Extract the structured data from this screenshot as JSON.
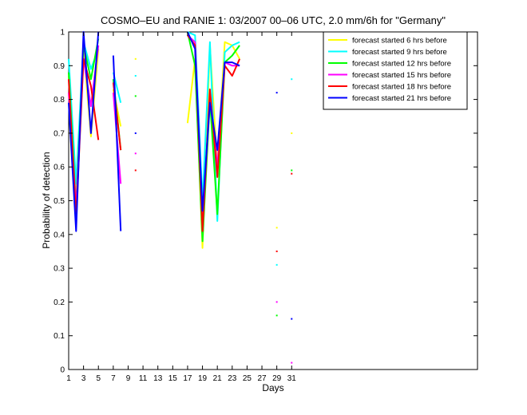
{
  "chart_data": {
    "type": "line",
    "title": "COSMO–EU and RANIE 1: 03/2007 00–06 UTC, 2.0 mm/6h for \"Germany\"",
    "xlabel": "Days",
    "ylabel": "Probability of detection",
    "xlim": [
      1,
      56
    ],
    "ylim": [
      0,
      1
    ],
    "xticks": [
      1,
      3,
      5,
      7,
      9,
      11,
      13,
      15,
      17,
      19,
      21,
      23,
      25,
      27,
      29,
      31
    ],
    "yticks": [
      0,
      0.1,
      0.2,
      0.3,
      0.4,
      0.5,
      0.6,
      0.7,
      0.8,
      0.9,
      1
    ],
    "ytick_labels": [
      "0",
      "0.1",
      "0.2",
      "0.3",
      "0.4",
      "0.5",
      "0.6",
      "0.7",
      "0.8",
      "0.9",
      "1"
    ],
    "grid": false,
    "legend_position": "top-right",
    "series": [
      {
        "name": "forecast started 6 hrs before",
        "color": "#ffff00",
        "values": [
          0.87,
          0.5,
          0.95,
          0.69,
          0.95,
          null,
          0.83,
          0.72,
          null,
          0.92,
          null,
          null,
          null,
          null,
          null,
          null,
          0.73,
          0.92,
          0.36,
          0.96,
          0.6,
          0.97,
          0.96,
          0.92,
          null,
          null,
          null,
          null,
          0.42,
          null,
          0.7
        ]
      },
      {
        "name": "forecast started 9 hrs before",
        "color": "#00ffff",
        "values": [
          0.92,
          0.55,
          0.97,
          0.89,
          0.95,
          null,
          0.88,
          0.79,
          null,
          0.87,
          null,
          null,
          null,
          null,
          null,
          null,
          1.0,
          0.99,
          0.5,
          0.97,
          0.44,
          0.94,
          0.96,
          0.97,
          null,
          null,
          null,
          null,
          0.31,
          null,
          0.86
        ]
      },
      {
        "name": "forecast started 12 hrs before",
        "color": "#00ff00",
        "values": [
          0.88,
          0.48,
          0.96,
          0.86,
          0.98,
          null,
          0.86,
          0.65,
          null,
          0.81,
          null,
          null,
          null,
          null,
          null,
          null,
          1.0,
          0.9,
          0.38,
          0.8,
          0.46,
          0.91,
          0.93,
          0.96,
          null,
          null,
          null,
          null,
          0.16,
          null,
          0.59
        ]
      },
      {
        "name": "forecast started 15 hrs before",
        "color": "#ff00ff",
        "values": [
          0.82,
          0.48,
          0.92,
          0.78,
          0.96,
          null,
          0.82,
          0.55,
          null,
          0.64,
          null,
          null,
          null,
          null,
          null,
          null,
          0.99,
          0.97,
          0.43,
          0.82,
          0.6,
          0.91,
          0.9,
          0.9,
          null,
          null,
          null,
          null,
          0.2,
          null,
          0.02
        ]
      },
      {
        "name": "forecast started 18 hrs before",
        "color": "#ff0000",
        "values": [
          0.86,
          0.45,
          0.92,
          0.84,
          0.68,
          null,
          0.85,
          0.65,
          null,
          0.59,
          null,
          null,
          null,
          null,
          null,
          null,
          0.99,
          0.96,
          0.41,
          0.83,
          0.57,
          0.9,
          0.87,
          0.92,
          null,
          null,
          null,
          null,
          0.35,
          null,
          0.58
        ]
      },
      {
        "name": "forecast started 21 hrs before",
        "color": "#0000ff",
        "values": [
          0.79,
          0.41,
          1.0,
          0.7,
          1.0,
          null,
          0.93,
          0.41,
          null,
          0.7,
          null,
          null,
          null,
          null,
          null,
          null,
          1.0,
          0.95,
          0.47,
          0.79,
          0.65,
          0.91,
          0.91,
          0.9,
          null,
          null,
          null,
          null,
          0.82,
          null,
          0.15
        ]
      }
    ]
  }
}
